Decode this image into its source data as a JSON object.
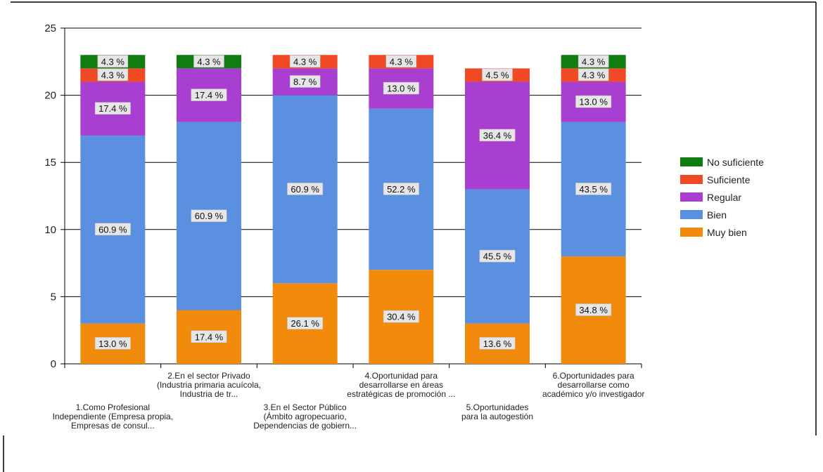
{
  "chart_data": {
    "type": "bar",
    "stacked": true,
    "title": "",
    "xlabel": "",
    "ylabel": "",
    "ylim": [
      0,
      25
    ],
    "yticks": [
      0,
      5,
      10,
      15,
      20,
      25
    ],
    "grid": true,
    "legend_position": "right",
    "categories": [
      [
        "1.Como Profesional",
        "Independiente (Empresa propia,",
        "Empresas de consul..."
      ],
      [
        "2.En el sector Privado",
        "(Industria primaria acuícola,",
        "Industria de tr..."
      ],
      [
        "3.En el Sector Público",
        "(Ámbito agropecuario,",
        "Dependencias de gobiern..."
      ],
      [
        "4.Oportunidad para",
        "desarrollarse en áreas",
        "estratégicas de promoción ..."
      ],
      [
        "5.Oportunidades",
        "para la autogestión"
      ],
      [
        "6.Oportunidades para",
        "desarrollarse como",
        "académico y/o investigador"
      ]
    ],
    "series": [
      {
        "name": "Muy bien",
        "color": "#f28a0c",
        "values": [
          3,
          4,
          6,
          7,
          3,
          8
        ],
        "labels": [
          "13.0 %",
          "17.4 %",
          "26.1 %",
          "30.4 %",
          "13.6 %",
          "34.8 %"
        ]
      },
      {
        "name": "Bien",
        "color": "#5b8fe0",
        "values": [
          14,
          14,
          14,
          12,
          10,
          10
        ],
        "labels": [
          "60.9 %",
          "60.9 %",
          "60.9 %",
          "52.2 %",
          "45.5 %",
          "43.5 %"
        ]
      },
      {
        "name": "Regular",
        "color": "#a83fd0",
        "values": [
          4,
          4,
          2,
          3,
          8,
          3
        ],
        "labels": [
          "17.4 %",
          "17.4 %",
          "8.7 %",
          "13.0 %",
          "36.4 %",
          "13.0 %"
        ]
      },
      {
        "name": "Suficiente",
        "color": "#ef4a25",
        "values": [
          1,
          0,
          1,
          1,
          1,
          1
        ],
        "labels": [
          "4.3 %",
          "",
          "4.3 %",
          "4.3 %",
          "4.5 %",
          "4.3 %"
        ]
      },
      {
        "name": "No suficiente",
        "color": "#0f7d0f",
        "values": [
          1,
          1,
          0,
          0,
          0,
          1
        ],
        "labels": [
          "4.3 %",
          "4.3 %",
          "",
          "",
          "",
          "4.3 %"
        ]
      }
    ],
    "legend_order": [
      "No suficiente",
      "Suficiente",
      "Regular",
      "Bien",
      "Muy bien"
    ]
  }
}
